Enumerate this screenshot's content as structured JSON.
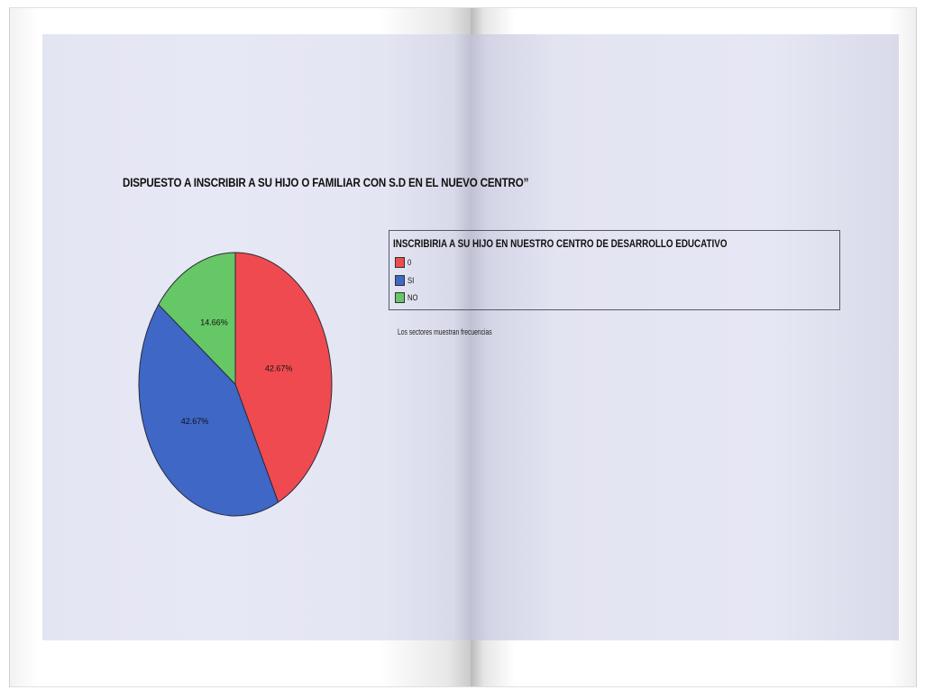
{
  "chart_data": {
    "type": "pie",
    "title": "DISPUESTO A INSCRIBIR A SU HIJO O FAMILIAR CON S.D EN EL NUEVO CENTRO”",
    "legend": {
      "title": "INSCRIBIRIA A SU HIJO EN NUESTRO CENTRO DE DESARROLLO EDUCATIVO",
      "placement": "top-right"
    },
    "slices": [
      {
        "label": "0",
        "value": 42.67,
        "value_label": "42.67%",
        "color": "#ef4a4f"
      },
      {
        "label": "SI",
        "value": 42.67,
        "value_label": "42.67%",
        "color": "#3e67c6"
      },
      {
        "label": "NO",
        "value": 14.66,
        "value_label": "14.66%",
        "color": "#66c766"
      }
    ],
    "note": "Los sectores muestran frecuencias"
  }
}
